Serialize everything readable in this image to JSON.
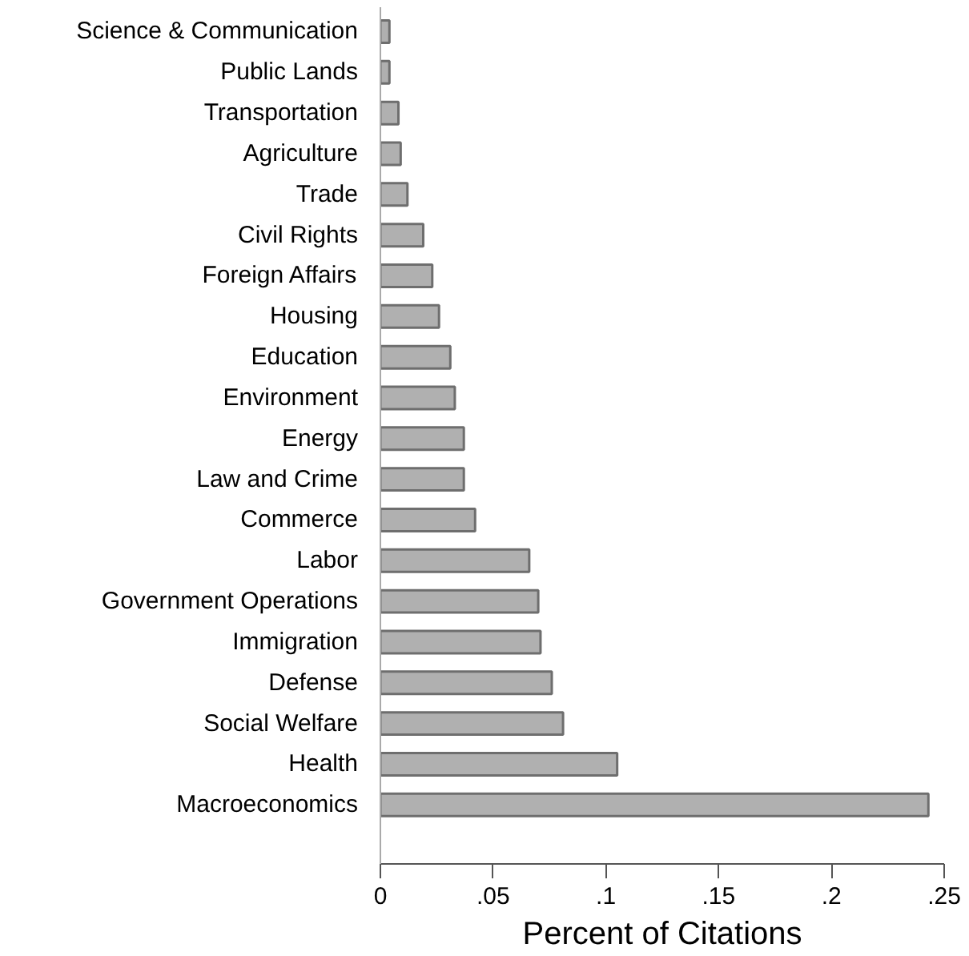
{
  "chart_data": {
    "type": "bar",
    "orientation": "horizontal",
    "xlabel": "Percent of Citations",
    "categories": [
      "Science & Communication",
      "Public Lands",
      "Transportation",
      "Agriculture",
      "Trade",
      "Civil Rights",
      "Foreign Affairs",
      "Housing",
      "Education",
      "Environment",
      "Energy",
      "Law and Crime",
      "Commerce",
      "Labor",
      "Government Operations",
      "Immigration",
      "Defense",
      "Social Welfare",
      "Health",
      "Macroeconomics"
    ],
    "values": [
      0.004,
      0.004,
      0.008,
      0.009,
      0.012,
      0.019,
      0.023,
      0.026,
      0.031,
      0.033,
      0.037,
      0.037,
      0.042,
      0.066,
      0.07,
      0.071,
      0.076,
      0.081,
      0.105,
      0.243
    ],
    "color": "#b0b0b0",
    "xlim": [
      0,
      0.25
    ],
    "xticks": [
      {
        "value": 0,
        "label": "0"
      },
      {
        "value": 0.05,
        "label": ".05"
      },
      {
        "value": 0.1,
        "label": ".1"
      },
      {
        "value": 0.15,
        "label": ".15"
      },
      {
        "value": 0.2,
        "label": ".2"
      },
      {
        "value": 0.25,
        "label": ".25"
      }
    ],
    "grid": false
  }
}
